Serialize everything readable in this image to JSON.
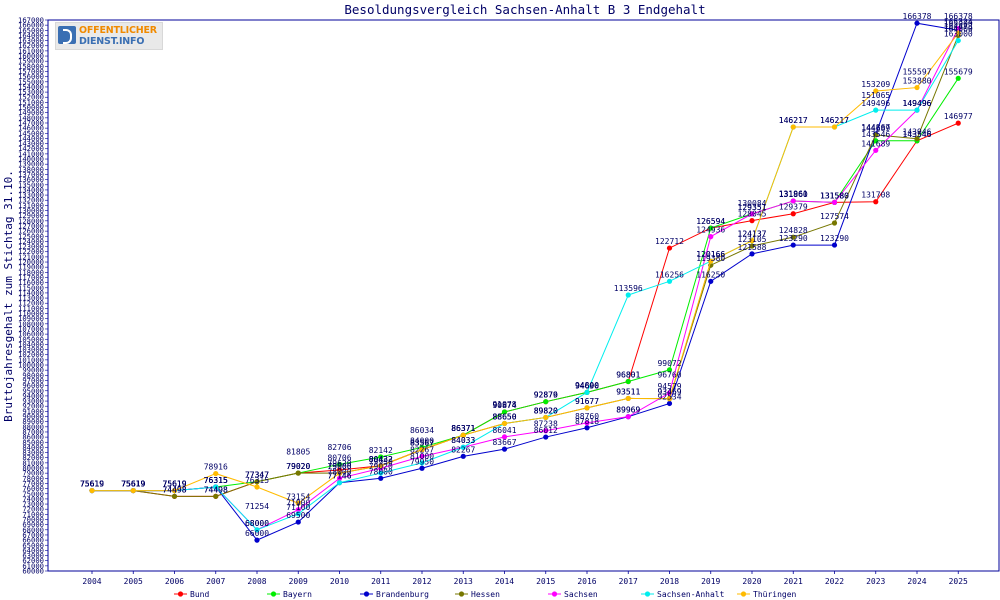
{
  "logo": {
    "line1": "OFFENTLICHER",
    "line2": "DIENST.INFO"
  },
  "chart_data": {
    "type": "line",
    "title": "Besoldungsvergleich Sachsen-Anhalt B 3 Endgehalt",
    "xlabel": "",
    "ylabel": "Bruttojahresgehalt zum Stichtag 31.10.",
    "x": [
      "2004",
      "2005",
      "2006",
      "2007",
      "2008",
      "2009",
      "2010",
      "2011",
      "2012",
      "2013",
      "2014",
      "2015",
      "2016",
      "2017",
      "2018",
      "2019",
      "2020",
      "2021",
      "2022",
      "2023",
      "2024",
      "2025"
    ],
    "ylim": [
      60000,
      167000
    ],
    "ytick_step": 1000,
    "grid": false,
    "legend_position": "bottom",
    "series": [
      {
        "name": "Bund",
        "color": "#ff0000",
        "values": [
          75619,
          75619,
          74498,
          74498,
          77347,
          79020,
          79620,
          80432,
          83567,
          86371,
          90874,
          92879,
          94690,
          96801,
          122712,
          126594,
          128045,
          129379,
          131580,
          131708,
          143546,
          146977
        ]
      },
      {
        "name": "Bayern",
        "color": "#00ee00",
        "values": [
          75619,
          75619,
          75619,
          76315,
          77347,
          79020,
          80706,
          82142,
          84000,
          86371,
          90874,
          92879,
          94690,
          96801,
          99072,
          126594,
          129351,
          131860,
          131580,
          143546,
          143546,
          155679
        ]
      },
      {
        "name": "Brandenburg",
        "color": "#0000cc",
        "values": [
          75619,
          75619,
          75619,
          76315,
          66000,
          69500,
          77146,
          78000,
          79950,
          82267,
          83667,
          86012,
          87818,
          89969,
          92534,
          116250,
          121588,
          123290,
          123290,
          144867,
          166378,
          165000
        ]
      },
      {
        "name": "Hessen",
        "color": "#777700",
        "values": [
          75619,
          75619,
          74498,
          74498,
          77347,
          79020,
          79000,
          80432,
          83567,
          86371,
          88650,
          89820,
          91677,
          93511,
          93469,
          119380,
          123105,
          124828,
          127574,
          144689,
          143946,
          164000
        ]
      },
      {
        "name": "Sachsen",
        "color": "#ff00ff",
        "values": [
          75619,
          75619,
          75619,
          76315,
          68000,
          71900,
          78000,
          79950,
          82267,
          84033,
          86041,
          87238,
          88760,
          89969,
          94579,
          124936,
          129351,
          131860,
          131580,
          141689,
          149496,
          165324
        ]
      },
      {
        "name": "Sachsen-Anhalt",
        "color": "#00eeee",
        "values": [
          75619,
          75619,
          75619,
          76315,
          68000,
          71100,
          77146,
          79020,
          81000,
          84033,
          88650,
          89820,
          94690,
          113596,
          116256,
          120166,
          124137,
          146217,
          146217,
          149496,
          149496,
          163000
        ]
      },
      {
        "name": "Thüringen",
        "color": "#ffbb00",
        "values": [
          75619,
          75619,
          75619,
          78916,
          76315,
          73154,
          79000,
          80432,
          83567,
          86371,
          88650,
          89820,
          91677,
          93511,
          93469,
          120166,
          124137,
          146217,
          146217,
          153209,
          153880,
          164473
        ]
      }
    ],
    "annotations": [
      {
        "x": "2008",
        "y": 71254,
        "text": "71254",
        "color": "#000066"
      },
      {
        "x": "2009",
        "y": 81805,
        "text": "81805",
        "color": "#000066"
      },
      {
        "x": "2010",
        "y": 82706,
        "text": "82706",
        "color": "#000066"
      },
      {
        "x": "2012",
        "y": 86034,
        "text": "86034",
        "color": "#000066"
      },
      {
        "x": "2014",
        "y": 91078,
        "text": "91078",
        "color": "#000066"
      },
      {
        "x": "2015",
        "y": 92876,
        "text": "92876",
        "color": "#000066"
      },
      {
        "x": "2016",
        "y": 94800,
        "text": "94800",
        "color": "#000066"
      },
      {
        "x": "2018",
        "y": 96760,
        "text": "96760",
        "color": "#000066"
      },
      {
        "x": "2020",
        "y": 130084,
        "text": "130084",
        "color": "#000066"
      },
      {
        "x": "2021",
        "y": 131961,
        "text": "131961",
        "color": "#000066"
      },
      {
        "x": "2023",
        "y": 151065,
        "text": "151065",
        "color": "#000066"
      },
      {
        "x": "2024",
        "y": 155597,
        "text": "155597",
        "color": "#000066"
      },
      {
        "x": "2024",
        "y": 149496,
        "text": "149496",
        "color": "#000066"
      },
      {
        "x": "2025",
        "y": 166378,
        "text": "166378",
        "color": "#000066"
      },
      {
        "x": "2025",
        "y": 164009,
        "text": "164009",
        "color": "#000066"
      }
    ]
  }
}
